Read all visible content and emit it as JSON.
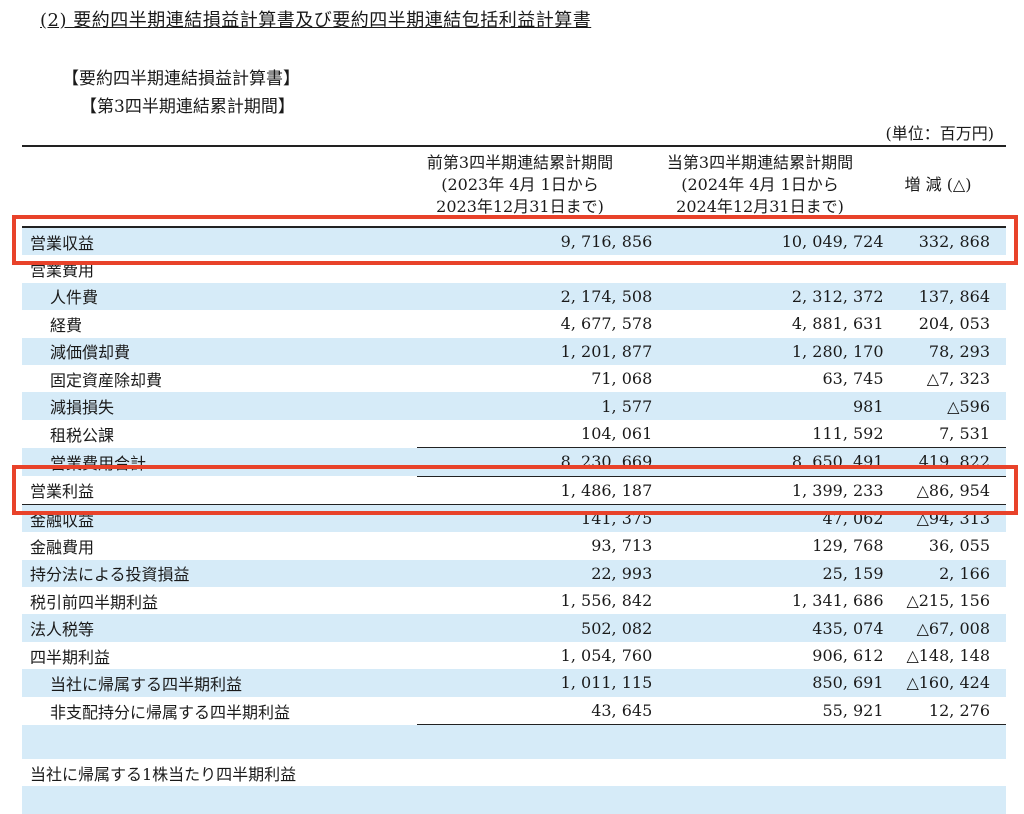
{
  "title": "(2) 要約四半期連結損益計算書及び要約四半期連結包括利益計算書",
  "subtitle1": "【要約四半期連結損益計算書】",
  "subtitle2": "【第3四半期連結累計期間】",
  "unit": "(単位：百万円)",
  "columns": {
    "prev": [
      "前第3四半期連結累計期間",
      "(2023年 4月 1日から",
      "2023年12月31日まで)"
    ],
    "curr": [
      "当第3四半期連結累計期間",
      "(2024年 4月 1日から",
      "2024年12月31日まで)"
    ],
    "diff": "増 減 (△)"
  },
  "rows": [
    {
      "label": "営業収益",
      "prev": "9, 716, 856",
      "curr": "10, 049, 724",
      "diff": "332, 868"
    },
    {
      "label": "営業費用",
      "prev": "",
      "curr": "",
      "diff": ""
    },
    {
      "label": "人件費",
      "prev": "2, 174, 508",
      "curr": "2, 312, 372",
      "diff": "137, 864"
    },
    {
      "label": "経費",
      "prev": "4, 677, 578",
      "curr": "4, 881, 631",
      "diff": "204, 053"
    },
    {
      "label": "減価償却費",
      "prev": "1, 201, 877",
      "curr": "1, 280, 170",
      "diff": "78, 293"
    },
    {
      "label": "固定資産除却費",
      "prev": "71, 068",
      "curr": "63, 745",
      "diff": "△7, 323"
    },
    {
      "label": "減損損失",
      "prev": "1, 577",
      "curr": "981",
      "diff": "△596"
    },
    {
      "label": "租税公課",
      "prev": "104, 061",
      "curr": "111, 592",
      "diff": "7, 531"
    },
    {
      "label": "営業費用合計",
      "prev": "8, 230, 669",
      "curr": "8, 650, 491",
      "diff": "419, 822"
    },
    {
      "label": "営業利益",
      "prev": "1, 486, 187",
      "curr": "1, 399, 233",
      "diff": "△86, 954"
    },
    {
      "label": "金融収益",
      "prev": "141, 375",
      "curr": "47, 062",
      "diff": "△94, 313"
    },
    {
      "label": "金融費用",
      "prev": "93, 713",
      "curr": "129, 768",
      "diff": "36, 055"
    },
    {
      "label": "持分法による投資損益",
      "prev": "22, 993",
      "curr": "25, 159",
      "diff": "2, 166"
    },
    {
      "label": "税引前四半期利益",
      "prev": "1, 556, 842",
      "curr": "1, 341, 686",
      "diff": "△215, 156"
    },
    {
      "label": "法人税等",
      "prev": "502, 082",
      "curr": "435, 074",
      "diff": "△67, 008"
    },
    {
      "label": "四半期利益",
      "prev": "1, 054, 760",
      "curr": "906, 612",
      "diff": "△148, 148"
    },
    {
      "label": "当社に帰属する四半期利益",
      "prev": "1, 011, 115",
      "curr": "850, 691",
      "diff": "△160, 424"
    },
    {
      "label": "非支配持分に帰属する四半期利益",
      "prev": "43, 645",
      "curr": "55, 921",
      "diff": "12, 276"
    },
    {
      "label": "",
      "prev": "",
      "curr": "",
      "diff": ""
    },
    {
      "label": "当社に帰属する1株当たり四半期利益",
      "prev": "",
      "curr": "",
      "diff": ""
    },
    {
      "label": "",
      "prev": "",
      "curr": "",
      "diff": ""
    }
  ],
  "highlight_color": "#e8422a",
  "shade_color": "#d6ebf8"
}
